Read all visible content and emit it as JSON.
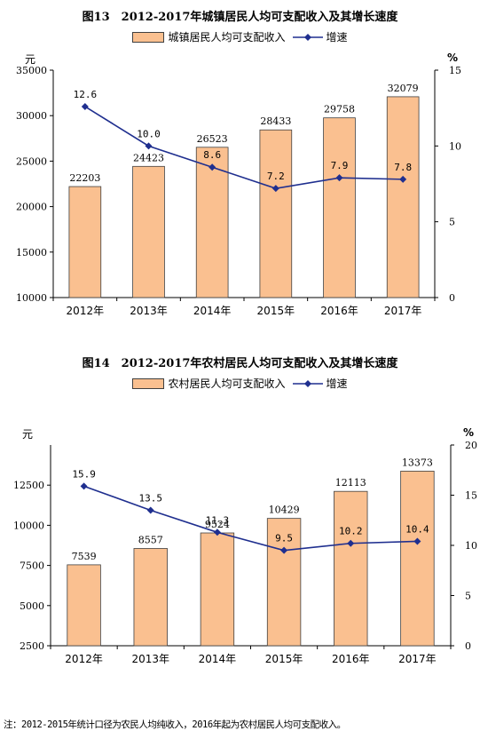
{
  "colors": {
    "bar_fill": "#FAC090",
    "bar_stroke": "#404040",
    "line": "#1F2F8F"
  },
  "chart_data": [
    {
      "type": "bar",
      "title": "图13　2012-2017年城镇居民人均可支配收入及其增长速度",
      "categories": [
        "2012年",
        "2013年",
        "2014年",
        "2015年",
        "2016年",
        "2017年"
      ],
      "series": [
        {
          "name": "城镇居民人均可支配收入",
          "kind": "bar",
          "axis": "left",
          "values": [
            22203,
            24423,
            26523,
            28433,
            29758,
            32079
          ]
        },
        {
          "name": "增速",
          "kind": "line",
          "axis": "right",
          "values": [
            12.6,
            10.0,
            8.6,
            7.2,
            7.9,
            7.8
          ]
        }
      ],
      "ylabel_left": "元",
      "ylabel_right": "%",
      "ylim_left": [
        10000,
        35000
      ],
      "yticks_left": [
        10000,
        15000,
        20000,
        25000,
        30000,
        35000
      ],
      "ylim_right": [
        0,
        15
      ],
      "yticks_right": [
        0,
        5,
        10,
        15
      ],
      "legend": "top-center",
      "grid": false
    },
    {
      "type": "bar",
      "title": "图14　2012-2017年农村居民人均可支配收入及其增长速度",
      "categories": [
        "2012年",
        "2013年",
        "2014年",
        "2015年",
        "2016年",
        "2017年"
      ],
      "series": [
        {
          "name": "农村居民人均可支配收入",
          "kind": "bar",
          "axis": "left",
          "values": [
            7539,
            8557,
            9524,
            10429,
            12113,
            13373
          ]
        },
        {
          "name": "增速",
          "kind": "line",
          "axis": "right",
          "values": [
            15.9,
            13.5,
            11.3,
            9.5,
            10.2,
            10.4
          ]
        }
      ],
      "ylabel_left": "元",
      "ylabel_right": "%",
      "ylim_left": [
        2500,
        15000
      ],
      "yticks_left": [
        2500,
        5000,
        7500,
        10000,
        12500
      ],
      "ylim_right": [
        0,
        20
      ],
      "yticks_right": [
        0,
        5,
        10,
        15,
        20
      ],
      "legend": "top-center",
      "grid": false
    }
  ],
  "note": "注：2012-2015年统计口径为农民人均纯收入，2016年起为农村居民人均可支配收入。"
}
